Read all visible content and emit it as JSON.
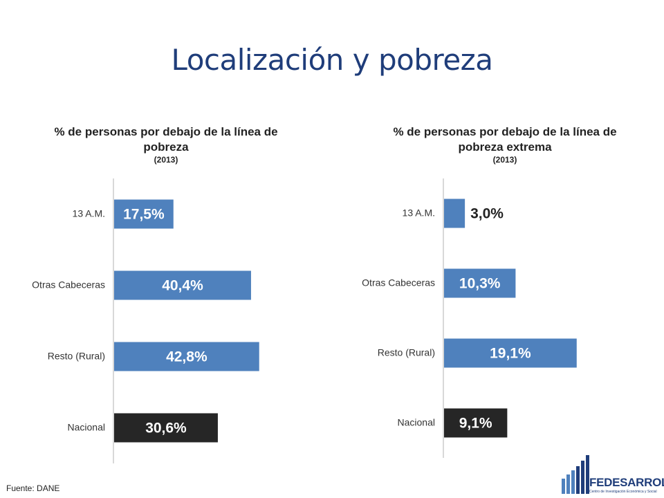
{
  "slide": {
    "title": "Localización y pobreza",
    "source": "Fuente: DANE",
    "logo_name": "FEDESARROLLO",
    "logo_subtitle": "Centro de Investigación Económica y Social"
  },
  "colors": {
    "blue": "#4f81bd",
    "dark": "#262626",
    "title": "#1f3d7a"
  },
  "chart_data": [
    {
      "type": "bar",
      "orientation": "horizontal",
      "title": "% de personas por debajo de la línea de pobreza",
      "subtitle": "(2013)",
      "categories": [
        "13 A.M.",
        "Otras Cabeceras",
        "Resto (Rural)",
        "Nacional"
      ],
      "values": [
        17.5,
        40.4,
        42.8,
        30.6
      ],
      "labels": [
        "17,5%",
        "40,4%",
        "42,8%",
        "30,6%"
      ],
      "bar_colors": [
        "#4f81bd",
        "#4f81bd",
        "#4f81bd",
        "#262626"
      ],
      "xlim": [
        0,
        50
      ],
      "grid": false
    },
    {
      "type": "bar",
      "orientation": "horizontal",
      "title": "% de personas por debajo de la línea de pobreza extrema",
      "subtitle": "(2013)",
      "categories": [
        "13 A.M.",
        "Otras Cabeceras",
        "Resto (Rural)",
        "Nacional"
      ],
      "values": [
        3.0,
        10.3,
        19.1,
        9.1
      ],
      "labels": [
        "3,0%",
        "10,3%",
        "19,1%",
        "9,1%"
      ],
      "bar_colors": [
        "#4f81bd",
        "#4f81bd",
        "#4f81bd",
        "#262626"
      ],
      "xlim": [
        0,
        25
      ],
      "grid": false
    }
  ]
}
